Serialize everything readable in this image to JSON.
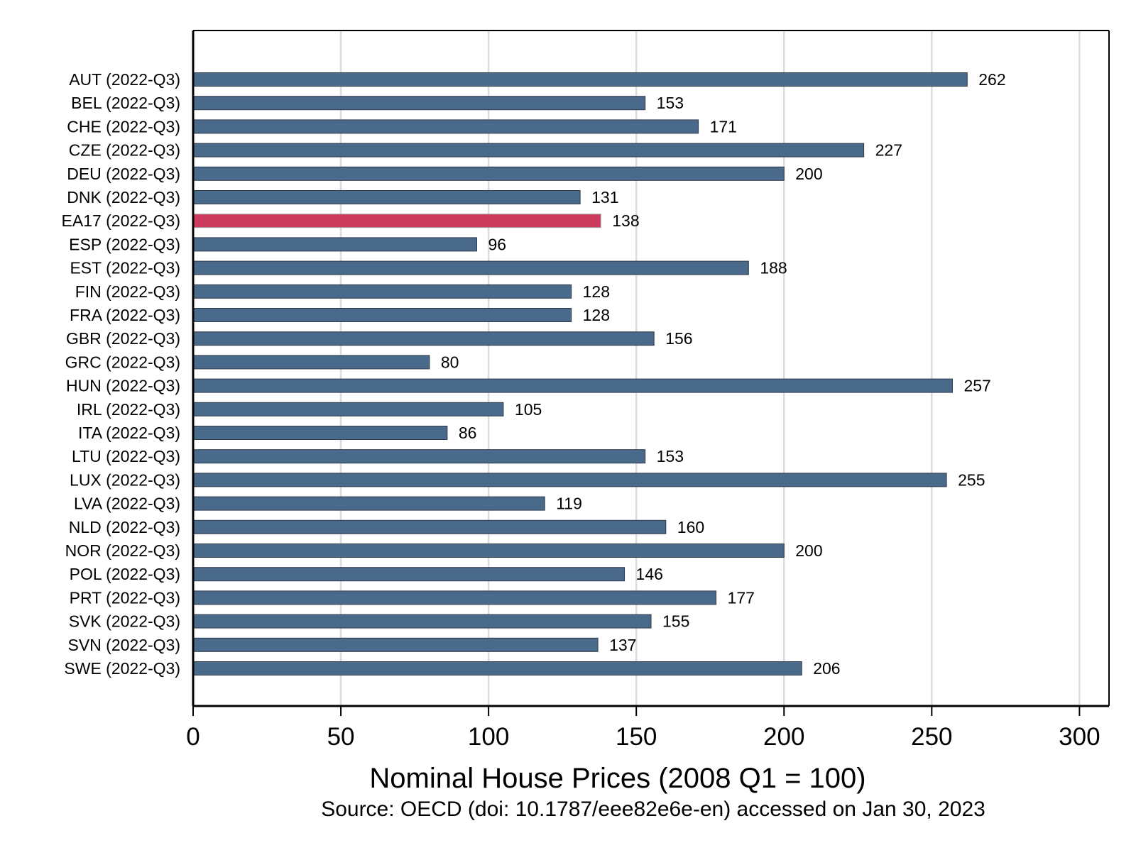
{
  "chart_data": {
    "type": "bar",
    "orientation": "horizontal",
    "categories": [
      "AUT (2022-Q3)",
      "BEL (2022-Q3)",
      "CHE (2022-Q3)",
      "CZE (2022-Q3)",
      "DEU (2022-Q3)",
      "DNK (2022-Q3)",
      "EA17 (2022-Q3)",
      "ESP (2022-Q3)",
      "EST (2022-Q3)",
      "FIN (2022-Q3)",
      "FRA (2022-Q3)",
      "GBR (2022-Q3)",
      "GRC (2022-Q3)",
      "HUN (2022-Q3)",
      "IRL (2022-Q3)",
      "ITA (2022-Q3)",
      "LTU (2022-Q3)",
      "LUX (2022-Q3)",
      "LVA (2022-Q3)",
      "NLD (2022-Q3)",
      "NOR (2022-Q3)",
      "POL (2022-Q3)",
      "PRT (2022-Q3)",
      "SVK (2022-Q3)",
      "SVN (2022-Q3)",
      "SWE (2022-Q3)"
    ],
    "values": [
      262,
      153,
      171,
      227,
      200,
      131,
      138,
      96,
      188,
      128,
      128,
      156,
      80,
      257,
      105,
      86,
      153,
      255,
      119,
      160,
      200,
      146,
      177,
      155,
      137,
      206
    ],
    "value_labels": [
      "262",
      "153",
      "171",
      "227",
      "200",
      "131",
      "138",
      "96",
      "188",
      "128",
      "128",
      "156",
      "80",
      "257",
      "105",
      "86",
      "153",
      "255",
      "119",
      "160",
      "200",
      "146",
      "177",
      "155",
      "137",
      "206"
    ],
    "highlight_category": "EA17 (2022-Q3)",
    "bar_color": "#4a6a8c",
    "highlight_color": "#cc3b5e",
    "xlabel": "Nominal House Prices (2008 Q1 = 100)",
    "ylabel": "",
    "title": "",
    "xlim": [
      0,
      310
    ],
    "xticks": [
      0,
      50,
      100,
      150,
      200,
      250,
      300
    ],
    "xtick_labels": [
      "0",
      "50",
      "100",
      "150",
      "200",
      "250",
      "300"
    ],
    "grid": "vertical",
    "legend": "none"
  },
  "source_note": "Source: OECD (doi: 10.1787/eee82e6e-en) accessed on Jan 30, 2023"
}
